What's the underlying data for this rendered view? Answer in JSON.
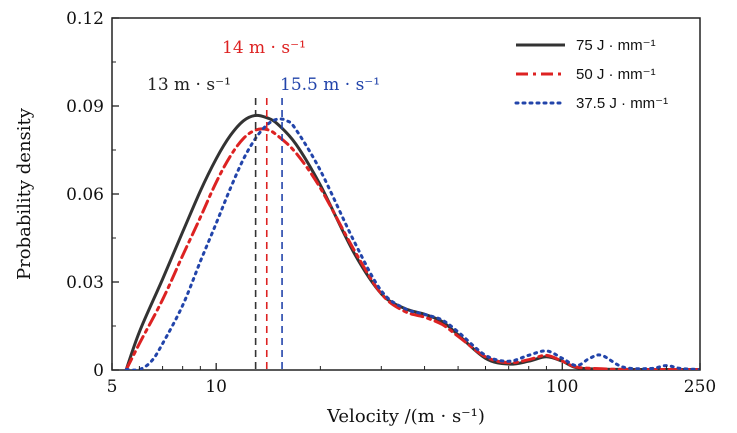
{
  "chart_data": {
    "type": "line",
    "title": "",
    "xlabel": "Velocity /(m · s⁻¹)",
    "ylabel": "Probability density",
    "xscale": "log",
    "xlim": [
      5,
      250
    ],
    "ylim": [
      0,
      0.12
    ],
    "x_ticks": [
      {
        "value": 5,
        "label": "5"
      },
      {
        "value": 10,
        "label": "10"
      },
      {
        "value": 100,
        "label": "100"
      },
      {
        "value": 250,
        "label": "250"
      }
    ],
    "y_ticks": [
      {
        "value": 0,
        "label": "0"
      },
      {
        "value": 0.03,
        "label": "0.03"
      },
      {
        "value": 0.06,
        "label": "0.06"
      },
      {
        "value": 0.09,
        "label": "0.09"
      },
      {
        "value": 0.12,
        "label": "0.12"
      }
    ],
    "legend_position": "top-right",
    "series": [
      {
        "name": "75 J · mm⁻¹",
        "color": "#333333",
        "style": "solid",
        "x": [
          5.5,
          6,
          7,
          8,
          9,
          10,
          11,
          12,
          13,
          14,
          15,
          17,
          20,
          25,
          30,
          35,
          40,
          45,
          50,
          60,
          70,
          80,
          90,
          100,
          110,
          130,
          150,
          200,
          250
        ],
        "y": [
          0,
          0.013,
          0.031,
          0.047,
          0.061,
          0.072,
          0.08,
          0.085,
          0.0868,
          0.086,
          0.084,
          0.077,
          0.063,
          0.04,
          0.026,
          0.021,
          0.019,
          0.0165,
          0.012,
          0.004,
          0.002,
          0.003,
          0.0045,
          0.003,
          0.0008,
          0.0003,
          0.0002,
          0.0001,
          0.0001
        ]
      },
      {
        "name": "50 J · mm⁻¹",
        "color": "#dd2222",
        "style": "dashdot",
        "x": [
          5.5,
          6,
          7,
          8,
          9,
          10,
          11,
          12,
          13,
          14,
          15,
          17,
          20,
          25,
          30,
          35,
          40,
          45,
          50,
          60,
          70,
          80,
          90,
          100,
          110,
          130,
          150,
          200,
          250
        ],
        "y": [
          0,
          0.009,
          0.024,
          0.039,
          0.052,
          0.064,
          0.073,
          0.079,
          0.0818,
          0.082,
          0.08,
          0.074,
          0.062,
          0.041,
          0.026,
          0.02,
          0.018,
          0.0155,
          0.0115,
          0.0045,
          0.0025,
          0.0035,
          0.005,
          0.003,
          0.001,
          0.0004,
          0.0002,
          0.0001,
          0.0001
        ]
      },
      {
        "name": "37.5 J · mm⁻¹",
        "color": "#2244aa",
        "style": "dotted",
        "x": [
          5.5,
          6,
          6.5,
          7,
          8,
          9,
          10,
          11,
          12,
          13,
          14,
          15,
          16,
          17,
          20,
          25,
          30,
          35,
          40,
          45,
          50,
          60,
          70,
          80,
          90,
          100,
          110,
          120,
          130,
          150,
          180,
          200,
          220,
          250
        ],
        "y": [
          0,
          0,
          0.003,
          0.009,
          0.022,
          0.037,
          0.05,
          0.062,
          0.072,
          0.079,
          0.0835,
          0.0855,
          0.085,
          0.082,
          0.068,
          0.044,
          0.027,
          0.021,
          0.019,
          0.017,
          0.013,
          0.005,
          0.003,
          0.005,
          0.0065,
          0.004,
          0.0015,
          0.004,
          0.005,
          0.001,
          0.0005,
          0.0015,
          0.0005,
          0.0001
        ]
      }
    ],
    "reference_lines": [
      {
        "x": 13,
        "label": "13 m · s⁻¹",
        "color": "#333333"
      },
      {
        "x": 14,
        "label": "14 m · s⁻¹",
        "color": "#dd2222"
      },
      {
        "x": 15.5,
        "label": "15.5 m · s⁻¹",
        "color": "#2244aa"
      }
    ]
  }
}
